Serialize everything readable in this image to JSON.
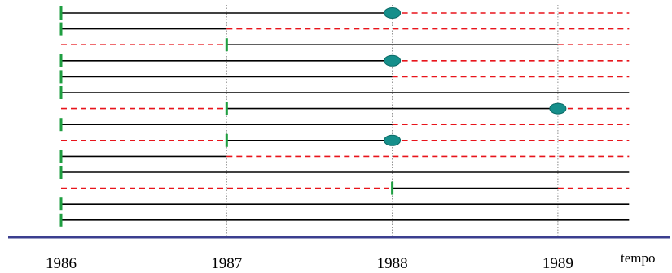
{
  "colors": {
    "observed_line": "#000000",
    "unobserved_line": "#e8141b",
    "entry_marker": "#1e9e40",
    "event_marker": "#168f8b",
    "event_marker_stroke": "#0b6a66",
    "gridline": "#8a8a8a",
    "axis": "#3b3f8f"
  },
  "time_axis": {
    "label": "tempo",
    "ticks": [
      "1986",
      "1987",
      "1988",
      "1989"
    ],
    "tick_values": [
      1986,
      1987,
      1988,
      1989
    ],
    "range": [
      1986,
      1989.43
    ]
  },
  "subjects": [
    {
      "entry": 1986.0,
      "exit": 1988.0,
      "event": true
    },
    {
      "entry": 1986.0,
      "exit": 1987.0,
      "event": false
    },
    {
      "entry": 1987.0,
      "exit": 1989.0,
      "event": false
    },
    {
      "entry": 1986.0,
      "exit": 1988.0,
      "event": true
    },
    {
      "entry": 1986.0,
      "exit": 1988.0,
      "event": false
    },
    {
      "entry": 1986.0,
      "exit": 1989.43,
      "event": false
    },
    {
      "entry": 1987.0,
      "exit": 1989.0,
      "event": true
    },
    {
      "entry": 1986.0,
      "exit": 1988.0,
      "event": false
    },
    {
      "entry": 1987.0,
      "exit": 1988.0,
      "event": true
    },
    {
      "entry": 1986.0,
      "exit": 1987.0,
      "event": false
    },
    {
      "entry": 1986.0,
      "exit": 1989.43,
      "event": false
    },
    {
      "entry": 1988.0,
      "exit": 1989.0,
      "event": false
    },
    {
      "entry": 1986.0,
      "exit": 1989.43,
      "event": false
    },
    {
      "entry": 1986.0,
      "exit": 1989.43,
      "event": false
    }
  ]
}
